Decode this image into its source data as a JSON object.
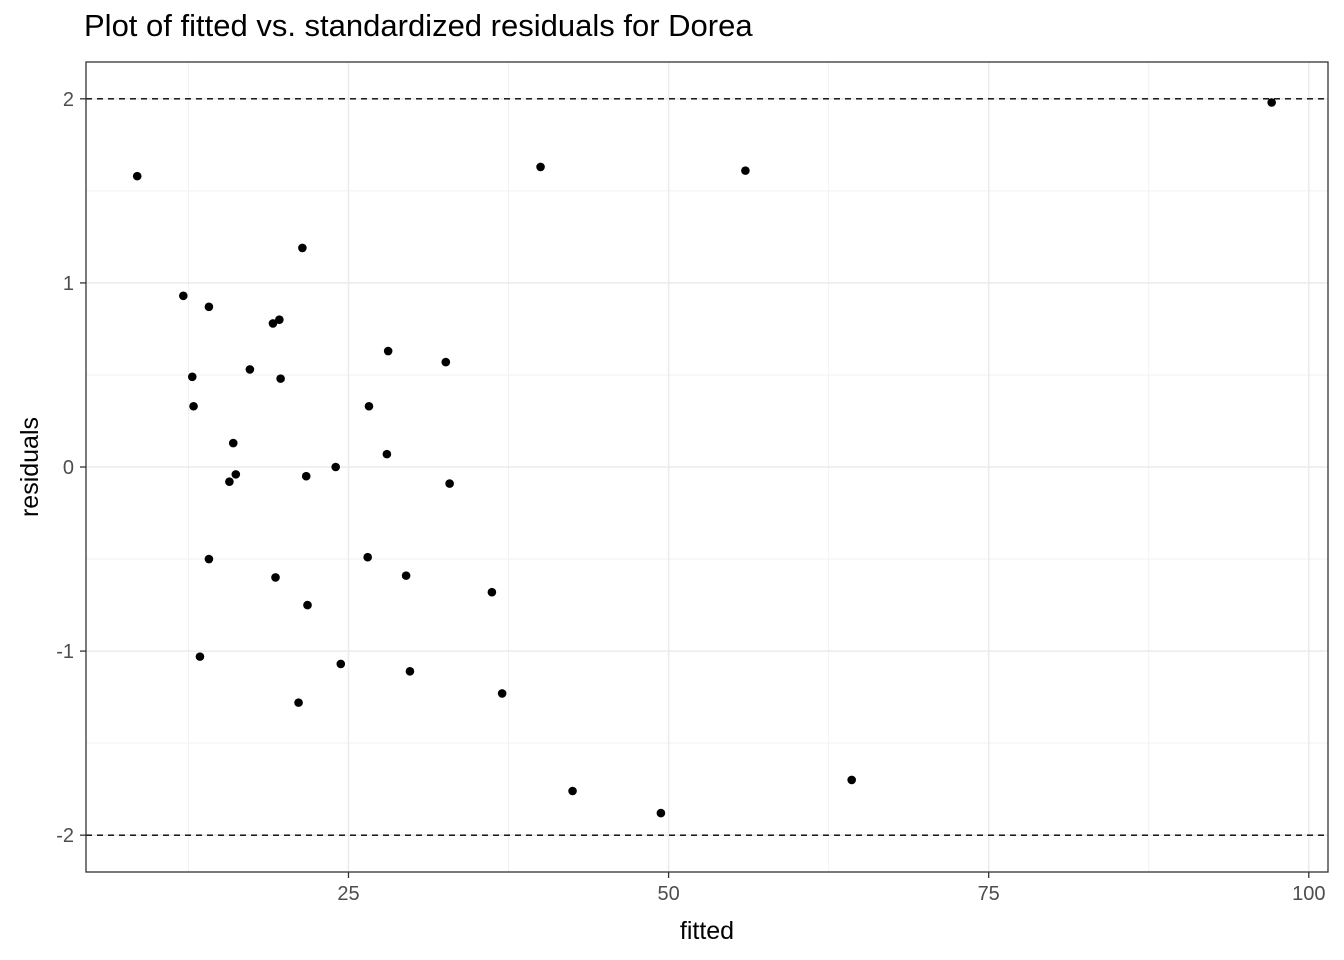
{
  "chart_data": {
    "type": "scatter",
    "title": "Plot of fitted vs. standardized residuals for Dorea",
    "xlabel": "fitted",
    "ylabel": "residuals",
    "xlim": [
      4.5,
      101.5
    ],
    "ylim": [
      -2.2,
      2.2
    ],
    "x_ticks": [
      {
        "value": 25,
        "label": "25"
      },
      {
        "value": 50,
        "label": "50"
      },
      {
        "value": 75,
        "label": "75"
      },
      {
        "value": 100,
        "label": "100"
      }
    ],
    "y_ticks": [
      {
        "value": -2,
        "label": "-2"
      },
      {
        "value": -1,
        "label": "-1"
      },
      {
        "value": 0,
        "label": "0"
      },
      {
        "value": 1,
        "label": "1"
      },
      {
        "value": 2,
        "label": "2"
      }
    ],
    "reference_lines": [
      2,
      -2
    ],
    "grid": true,
    "point_color": "#000000",
    "points": [
      {
        "x": 8.5,
        "y": 1.58
      },
      {
        "x": 12.1,
        "y": 0.93
      },
      {
        "x": 12.8,
        "y": 0.49
      },
      {
        "x": 12.9,
        "y": 0.33
      },
      {
        "x": 13.4,
        "y": -1.03
      },
      {
        "x": 14.1,
        "y": 0.87
      },
      {
        "x": 14.1,
        "y": -0.5
      },
      {
        "x": 15.7,
        "y": -0.08
      },
      {
        "x": 16.0,
        "y": 0.13
      },
      {
        "x": 16.2,
        "y": -0.04
      },
      {
        "x": 17.3,
        "y": 0.53
      },
      {
        "x": 19.1,
        "y": 0.78
      },
      {
        "x": 19.3,
        "y": -0.6
      },
      {
        "x": 19.6,
        "y": 0.8
      },
      {
        "x": 19.7,
        "y": 0.48
      },
      {
        "x": 21.1,
        "y": -1.28
      },
      {
        "x": 21.4,
        "y": 1.19
      },
      {
        "x": 21.7,
        "y": -0.05
      },
      {
        "x": 21.8,
        "y": -0.75
      },
      {
        "x": 24.0,
        "y": 0.0
      },
      {
        "x": 24.4,
        "y": -1.07
      },
      {
        "x": 26.5,
        "y": -0.49
      },
      {
        "x": 26.6,
        "y": 0.33
      },
      {
        "x": 28.0,
        "y": 0.07
      },
      {
        "x": 28.1,
        "y": 0.63
      },
      {
        "x": 29.5,
        "y": -0.59
      },
      {
        "x": 29.8,
        "y": -1.11
      },
      {
        "x": 32.6,
        "y": 0.57
      },
      {
        "x": 32.9,
        "y": -0.09
      },
      {
        "x": 36.2,
        "y": -0.68
      },
      {
        "x": 37.0,
        "y": -1.23
      },
      {
        "x": 40.0,
        "y": 1.63
      },
      {
        "x": 42.5,
        "y": -1.76
      },
      {
        "x": 49.4,
        "y": -1.88
      },
      {
        "x": 56.0,
        "y": 1.61
      },
      {
        "x": 64.3,
        "y": -1.7
      },
      {
        "x": 97.1,
        "y": 1.98
      }
    ]
  }
}
